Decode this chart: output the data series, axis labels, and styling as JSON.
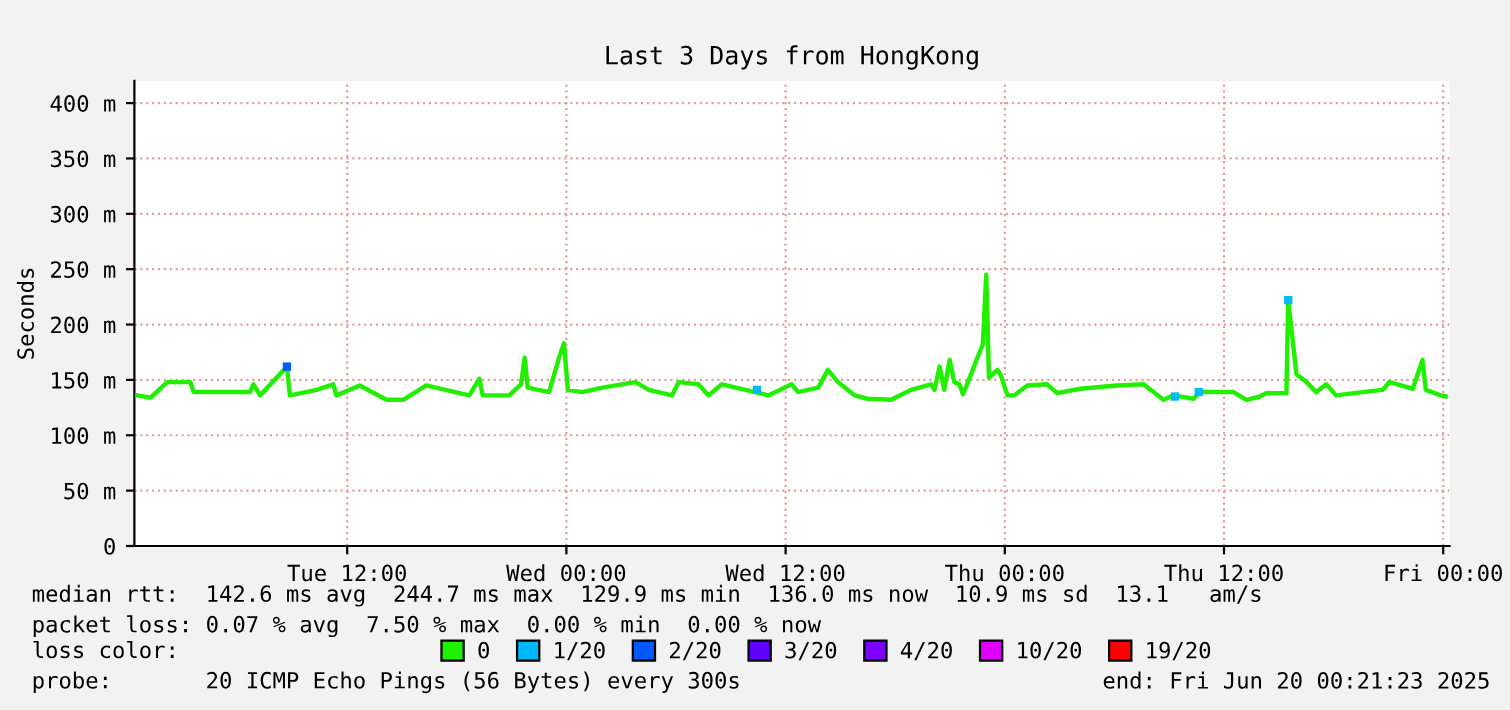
{
  "chart_data": {
    "type": "line",
    "title": "Last 3 Days from HongKong",
    "ylabel": "Seconds",
    "x": [
      "2025-06-17T00:31",
      "2025-06-17T01:14",
      "2025-06-17T02:09",
      "2025-06-17T03:25",
      "2025-06-17T03:36",
      "2025-06-17T05:14",
      "2025-06-17T06:41",
      "2025-06-17T06:52",
      "2025-06-17T07:14",
      "2025-06-17T08:42",
      "2025-06-17T08:52",
      "2025-06-17T10:20",
      "2025-06-17T11:14",
      "2025-06-17T11:25",
      "2025-06-17T12:41",
      "2025-06-17T14:09",
      "2025-06-17T15:04",
      "2025-06-17T16:20",
      "2025-06-17T18:41",
      "2025-06-17T19:14",
      "2025-06-17T19:25",
      "2025-06-17T20:52",
      "2025-06-17T21:31",
      "2025-06-17T21:43",
      "2025-06-17T21:53",
      "2025-06-17T23:03",
      "2025-06-17T23:36",
      "2025-06-17T23:52",
      "2025-06-18T00:05",
      "2025-06-18T00:52",
      "2025-06-18T01:58",
      "2025-06-18T03:47",
      "2025-06-18T04:31",
      "2025-06-18T05:47",
      "2025-06-18T06:09",
      "2025-06-18T07:14",
      "2025-06-18T07:47",
      "2025-06-18T08:31",
      "2025-06-18T10:20",
      "2025-06-18T11:03",
      "2025-06-18T12:20",
      "2025-06-18T12:41",
      "2025-06-18T13:47",
      "2025-06-18T14:19",
      "2025-06-18T14:52",
      "2025-06-18T15:47",
      "2025-06-18T16:30",
      "2025-06-18T17:47",
      "2025-06-18T18:52",
      "2025-06-18T19:58",
      "2025-06-18T20:09",
      "2025-06-18T20:26",
      "2025-06-18T20:41",
      "2025-06-18T20:59",
      "2025-06-18T21:14",
      "2025-06-18T21:31",
      "2025-06-18T21:43",
      "2025-06-18T22:09",
      "2025-06-18T22:30",
      "2025-06-18T22:48",
      "2025-06-18T22:59",
      "2025-06-18T23:08",
      "2025-06-18T23:36",
      "2025-06-18T23:47",
      "2025-06-19T00:09",
      "2025-06-19T00:31",
      "2025-06-19T01:14",
      "2025-06-19T02:19",
      "2025-06-19T02:52",
      "2025-06-19T04:09",
      "2025-06-19T06:08",
      "2025-06-19T07:36",
      "2025-06-19T08:41",
      "2025-06-19T09:14",
      "2025-06-19T10:20",
      "2025-06-19T10:41",
      "2025-06-19T12:31",
      "2025-06-19T13:14",
      "2025-06-19T13:58",
      "2025-06-19T14:19",
      "2025-06-19T15:25",
      "2025-06-19T15:31",
      "2025-06-19T15:58",
      "2025-06-19T16:31",
      "2025-06-19T17:03",
      "2025-06-19T17:36",
      "2025-06-19T18:08",
      "2025-06-19T19:36",
      "2025-06-19T20:41",
      "2025-06-19T21:03",
      "2025-06-19T22:20",
      "2025-06-19T22:52",
      "2025-06-19T23:03",
      "2025-06-19T23:52",
      "2025-06-20T00:08"
    ],
    "series": [
      {
        "name": "0",
        "color": "#22ee00",
        "values": [
          136,
          134,
          148,
          148,
          139,
          139,
          139,
          146,
          136,
          162,
          136,
          141,
          146,
          136,
          145,
          132,
          132,
          145,
          136,
          151,
          136,
          136,
          146,
          170,
          143,
          139,
          170,
          183,
          141,
          139,
          143,
          148,
          141,
          136,
          148,
          146,
          136,
          146,
          139,
          136,
          146,
          139,
          143,
          159,
          148,
          136,
          133,
          132,
          141,
          146,
          141,
          162,
          141,
          168,
          148,
          146,
          137,
          155,
          170,
          182,
          245,
          152,
          159,
          154,
          136,
          136,
          145,
          146,
          138,
          142,
          145,
          146,
          132,
          136,
          133,
          139,
          139,
          132,
          135,
          138,
          138,
          222,
          155,
          148,
          139,
          146,
          136,
          139,
          141,
          148,
          142,
          168,
          141,
          136,
          135
        ]
      },
      {
        "name": "1/20",
        "color": "#00b8ff",
        "type": "scatter",
        "marker": "square",
        "x": [
          "2025-06-18T10:26",
          "2025-06-19T09:19",
          "2025-06-19T10:37",
          "2025-06-19T15:31"
        ],
        "values": [
          141,
          135,
          139,
          222
        ]
      },
      {
        "name": "2/20",
        "color": "#0059ff",
        "type": "scatter",
        "marker": "square",
        "x": [
          "2025-06-17T08:42"
        ],
        "values": [
          162
        ]
      },
      {
        "name": "3/20",
        "color": "#5e00ff",
        "values": [
          null,
          null,
          null,
          null,
          null,
          null,
          null,
          null,
          null,
          null,
          null,
          null,
          null,
          null,
          null,
          null,
          null,
          null,
          null,
          null,
          null,
          null,
          null,
          null,
          null,
          null,
          null,
          null,
          null,
          null,
          null,
          null,
          null,
          null,
          null,
          null,
          null,
          null,
          null,
          null,
          null,
          null,
          null,
          null,
          null,
          null,
          null,
          null,
          null,
          null,
          null,
          null,
          null,
          null,
          null,
          null,
          null,
          null,
          null,
          null,
          null,
          null,
          null,
          null,
          null,
          null,
          null,
          null,
          null,
          null,
          null,
          null,
          null,
          null,
          null,
          null,
          null,
          null,
          null,
          null,
          null,
          null,
          null,
          null,
          null,
          null,
          null,
          null,
          null,
          null,
          null,
          null,
          null,
          null,
          null
        ]
      },
      {
        "name": "4/20",
        "color": "#7e00ff",
        "values": [
          null,
          null,
          null,
          null,
          null,
          null,
          null,
          null,
          null,
          null,
          null,
          null,
          null,
          null,
          null,
          null,
          null,
          null,
          null,
          null,
          null,
          null,
          null,
          null,
          null,
          null,
          null,
          null,
          null,
          null,
          null,
          null,
          null,
          null,
          null,
          null,
          null,
          null,
          null,
          null,
          null,
          null,
          null,
          null,
          null,
          null,
          null,
          null,
          null,
          null,
          null,
          null,
          null,
          null,
          null,
          null,
          null,
          null,
          null,
          null,
          null,
          null,
          null,
          null,
          null,
          null,
          null,
          null,
          null,
          null,
          null,
          null,
          null,
          null,
          null,
          null,
          null,
          null,
          null,
          null,
          null,
          null,
          null,
          null,
          null,
          null,
          null,
          null,
          null,
          null,
          null,
          null,
          null,
          null,
          null
        ]
      },
      {
        "name": "10/20",
        "color": "#dd00ff",
        "values": [
          null,
          null,
          null,
          null,
          null,
          null,
          null,
          null,
          null,
          null,
          null,
          null,
          null,
          null,
          null,
          null,
          null,
          null,
          null,
          null,
          null,
          null,
          null,
          null,
          null,
          null,
          null,
          null,
          null,
          null,
          null,
          null,
          null,
          null,
          null,
          null,
          null,
          null,
          null,
          null,
          null,
          null,
          null,
          null,
          null,
          null,
          null,
          null,
          null,
          null,
          null,
          null,
          null,
          null,
          null,
          null,
          null,
          null,
          null,
          null,
          null,
          null,
          null,
          null,
          null,
          null,
          null,
          null,
          null,
          null,
          null,
          null,
          null,
          null,
          null,
          null,
          null,
          null,
          null,
          null,
          null,
          null,
          null,
          null,
          null,
          null,
          null,
          null,
          null,
          null,
          null,
          null,
          null,
          null,
          null
        ]
      },
      {
        "name": "19/20",
        "color": "#ff0000",
        "values": [
          null,
          null,
          null,
          null,
          null,
          null,
          null,
          null,
          null,
          null,
          null,
          null,
          null,
          null,
          null,
          null,
          null,
          null,
          null,
          null,
          null,
          null,
          null,
          null,
          null,
          null,
          null,
          null,
          null,
          null,
          null,
          null,
          null,
          null,
          null,
          null,
          null,
          null,
          null,
          null,
          null,
          null,
          null,
          null,
          null,
          null,
          null,
          null,
          null,
          null,
          null,
          null,
          null,
          null,
          null,
          null,
          null,
          null,
          null,
          null,
          null,
          null,
          null,
          null,
          null,
          null,
          null,
          null,
          null,
          null,
          null,
          null,
          null,
          null,
          null,
          null,
          null,
          null,
          null,
          null,
          null,
          null,
          null,
          null,
          null,
          null,
          null,
          null,
          null,
          null,
          null,
          null,
          null,
          null,
          null
        ]
      }
    ],
    "legend_title": "loss color:",
    "legend": "bottom",
    "xlim": [
      "2025-06-17T00:21",
      "2025-06-20T00:21"
    ],
    "xticks": [
      {
        "value": "2025-06-17T12:00",
        "label": "Tue 12:00"
      },
      {
        "value": "2025-06-18T00:00",
        "label": "Wed 00:00"
      },
      {
        "value": "2025-06-18T12:00",
        "label": "Wed 12:00"
      },
      {
        "value": "2025-06-19T00:00",
        "label": "Thu 00:00"
      },
      {
        "value": "2025-06-19T12:00",
        "label": "Thu 12:00"
      },
      {
        "value": "2025-06-20T00:00",
        "label": "Fri 00:00"
      }
    ],
    "ylim": [
      0,
      420
    ],
    "yticks": [
      0,
      {
        "value": 50,
        "label": "50 m"
      },
      {
        "value": 100,
        "label": "100 m"
      },
      {
        "value": 150,
        "label": "150 m"
      },
      {
        "value": 200,
        "label": "200 m"
      },
      {
        "value": 250,
        "label": "250 m"
      },
      {
        "value": 300,
        "label": "300 m"
      },
      {
        "value": 350,
        "label": "350 m"
      },
      {
        "value": 400,
        "label": "400 m"
      }
    ],
    "grid": true,
    "marker": "none",
    "line_style": "solid",
    "annotations": [
      "median rtt:  142.6 ms avg  244.7 ms max  129.9 ms min  136.0 ms now  10.9 ms sd  13.1   am/s",
      "packet loss: 0.07 % avg  7.50 % max  0.00 % min  0.00 % now",
      "probe:       20 ICMP Echo Pings (56 Bytes) every 300s",
      "end: Fri Jun 20 00:21:23 2025"
    ]
  }
}
